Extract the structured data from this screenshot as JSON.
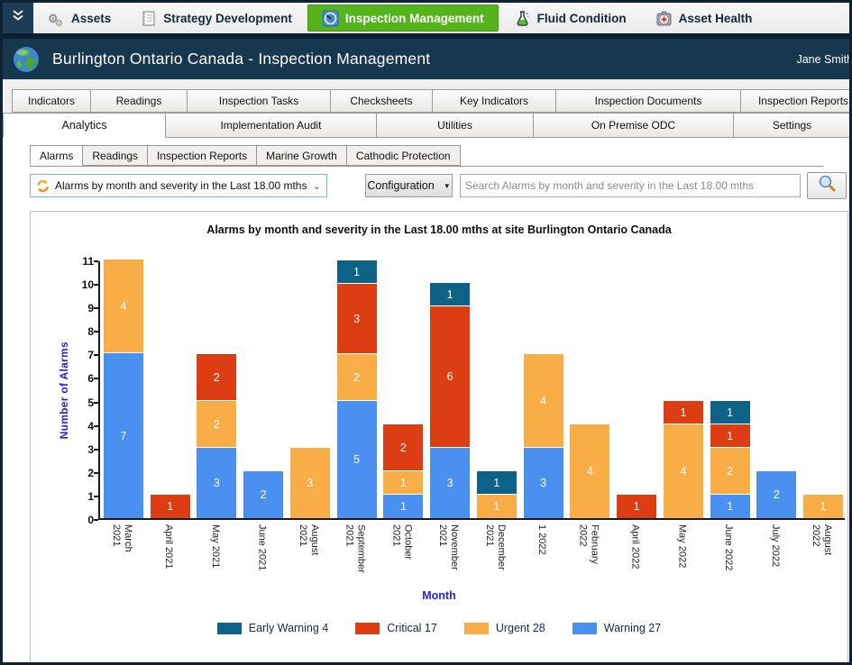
{
  "toolbar": {
    "items": [
      {
        "label": "Assets",
        "icon": "gears-icon",
        "active": false
      },
      {
        "label": "Strategy Development",
        "icon": "document-icon",
        "active": false
      },
      {
        "label": "Inspection Management",
        "icon": "gauge-icon",
        "active": true
      },
      {
        "label": "Fluid Condition",
        "icon": "flask-icon",
        "active": false
      },
      {
        "label": "Asset Health",
        "icon": "first-aid-icon",
        "active": false
      }
    ],
    "active_color": "#55b41c"
  },
  "header": {
    "title": "Burlington Ontario Canada - Inspection Management",
    "user": "Jane Smith",
    "background": "#16384e"
  },
  "tabs_row1": [
    "Indicators",
    "Readings",
    "Inspection Tasks",
    "Checksheets",
    "Key Indicators",
    "Inspection Documents",
    "Inspection Reports"
  ],
  "tabs_row2": {
    "items": [
      "Analytics",
      "Implementation Audit",
      "Utilities",
      "On Premise ODC",
      "Settings"
    ],
    "active": "Analytics"
  },
  "subtabs": {
    "items": [
      "Alarms",
      "Readings",
      "Inspection Reports",
      "Marine Growth",
      "Cathodic Protection"
    ],
    "active": "Alarms"
  },
  "controls": {
    "query_selected": "Alarms by month and severity in the Last 18.00 mths",
    "configuration_label": "Configuration",
    "search_placeholder": "Search Alarms by month and severity in the Last 18.00 mths"
  },
  "chart_data": {
    "type": "bar",
    "stacked": true,
    "title": "Alarms by month and severity in the Last 18.00 mths at site Burlington Ontario Canada",
    "xlabel": "Month",
    "ylabel": "Number of Alarms",
    "ylim": [
      0,
      11
    ],
    "yticks": [
      0,
      1,
      2,
      3,
      4,
      5,
      6,
      7,
      8,
      9,
      10,
      11
    ],
    "grid": false,
    "legend_position": "bottom",
    "categories": [
      "March 2021",
      "April 2021",
      "May 2021",
      "June 2021",
      "August 2021",
      "September 2021",
      "October 2021",
      "November 2021",
      "December 2021",
      "1 2022",
      "February 2022",
      "April 2022",
      "May 2022",
      "June 2022",
      "July 2022",
      "August 2022"
    ],
    "categories_lines": [
      [
        "March",
        "2021"
      ],
      [
        "April 2021"
      ],
      [
        "May 2021"
      ],
      [
        "June 2021"
      ],
      [
        "August",
        "2021"
      ],
      [
        "September",
        "2021"
      ],
      [
        "October",
        "2021"
      ],
      [
        "November",
        "2021"
      ],
      [
        "December",
        "2021"
      ],
      [
        "1 2022"
      ],
      [
        "February",
        "2022"
      ],
      [
        "April 2022"
      ],
      [
        "May 2022"
      ],
      [
        "June 2022"
      ],
      [
        "July 2022"
      ],
      [
        "August",
        "2022"
      ]
    ],
    "series": [
      {
        "name": "Warning",
        "total": 27,
        "color": "#4a90f0",
        "values": [
          7,
          0,
          3,
          2,
          0,
          5,
          1,
          3,
          0,
          3,
          0,
          0,
          0,
          1,
          2,
          0
        ]
      },
      {
        "name": "Urgent",
        "total": 28,
        "color": "#f8ad46",
        "values": [
          4,
          0,
          2,
          0,
          3,
          2,
          1,
          0,
          1,
          4,
          4,
          0,
          4,
          2,
          0,
          1
        ]
      },
      {
        "name": "Critical",
        "total": 17,
        "color": "#dd3d12",
        "values": [
          0,
          1,
          2,
          0,
          0,
          3,
          2,
          6,
          0,
          0,
          0,
          1,
          1,
          1,
          0,
          0
        ]
      },
      {
        "name": "Early Warning",
        "total": 4,
        "color": "#0e6187",
        "values": [
          0,
          0,
          0,
          0,
          0,
          1,
          0,
          1,
          1,
          0,
          0,
          0,
          0,
          1,
          0,
          0
        ]
      }
    ],
    "legend": [
      {
        "label": "Early Warning 4",
        "color": "#0e6187"
      },
      {
        "label": "Critical 17",
        "color": "#dd3d12"
      },
      {
        "label": "Urgent 28",
        "color": "#f8ad46"
      },
      {
        "label": "Warning 27",
        "color": "#4a90f0"
      }
    ]
  }
}
